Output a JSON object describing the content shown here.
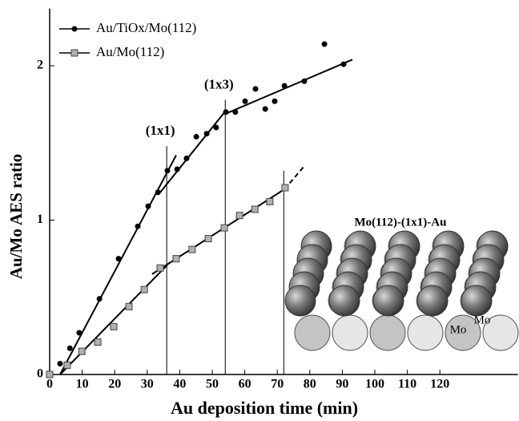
{
  "chart_data": {
    "type": "scatter",
    "x_label": "Au deposition time (min)",
    "y_label": "Au/Mo AES ratio",
    "xlim": [
      0,
      144
    ],
    "ylim": [
      0,
      2.37
    ],
    "xticks": [
      0,
      10,
      20,
      30,
      40,
      50,
      60,
      70,
      80,
      90,
      100,
      110,
      120
    ],
    "yticks": [
      0,
      1,
      2
    ],
    "legend": "upper left",
    "series": [
      {
        "name": "Au/TiOx/Mo(112)",
        "color": "#000000",
        "marker": "circle",
        "x": [
          0,
          3.2,
          6.2,
          9.1,
          15.3,
          21.2,
          27.1,
          30.3,
          33.3,
          36.2,
          39.2,
          42.1,
          45.1,
          48.3,
          51.2,
          54.2,
          57.1,
          60.1,
          63.3,
          66.3,
          69.2,
          72.2,
          78.3,
          84.5,
          90.4
        ],
        "values": [
          0,
          0.07,
          0.17,
          0.27,
          0.49,
          0.75,
          0.96,
          1.09,
          1.18,
          1.32,
          1.33,
          1.4,
          1.54,
          1.56,
          1.6,
          1.7,
          1.7,
          1.77,
          1.85,
          1.72,
          1.77,
          1.87,
          1.9,
          2.14,
          2.01
        ]
      },
      {
        "name": "Au/Mo(112)",
        "color": "#b0b0b0",
        "marker": "square",
        "x": [
          0,
          5.4,
          9.9,
          14.8,
          19.7,
          24.4,
          29.1,
          34,
          38.9,
          43.8,
          48.8,
          53.7,
          58.4,
          63.1,
          67.7,
          72.4
        ],
        "values": [
          0,
          0.06,
          0.15,
          0.21,
          0.31,
          0.44,
          0.55,
          0.69,
          0.75,
          0.81,
          0.88,
          0.95,
          1.03,
          1.07,
          1.12,
          1.21
        ]
      }
    ],
    "fits": [
      {
        "x": [
          3.2,
          38.9
        ],
        "y": [
          0,
          1.42
        ],
        "dashed": false
      },
      {
        "x": [
          34,
          54.2
        ],
        "y": [
          1.18,
          1.71
        ],
        "dashed": false
      },
      {
        "x": [
          54.2,
          93.1
        ],
        "y": [
          1.69,
          2.04
        ],
        "dashed": false
      },
      {
        "x": [
          3.2,
          36.2
        ],
        "y": [
          0,
          0.71
        ],
        "dashed": false
      },
      {
        "x": [
          31.5,
          72.2
        ],
        "y": [
          0.65,
          1.2
        ],
        "dashed": false
      },
      {
        "x": [
          72.2,
          78.3
        ],
        "y": [
          1.2,
          1.35
        ],
        "dashed": true
      }
    ],
    "markers": [
      {
        "x": 36,
        "ymax": 1.48,
        "label": "(1x1)"
      },
      {
        "x": 54,
        "ymax": 1.78,
        "label": "(1x3)"
      },
      {
        "x": 72,
        "ymax": 1.32
      }
    ],
    "inset": {
      "title": "Mo(112)-(1x1)-Au",
      "labels": [
        "Mo",
        "Mo"
      ]
    }
  }
}
